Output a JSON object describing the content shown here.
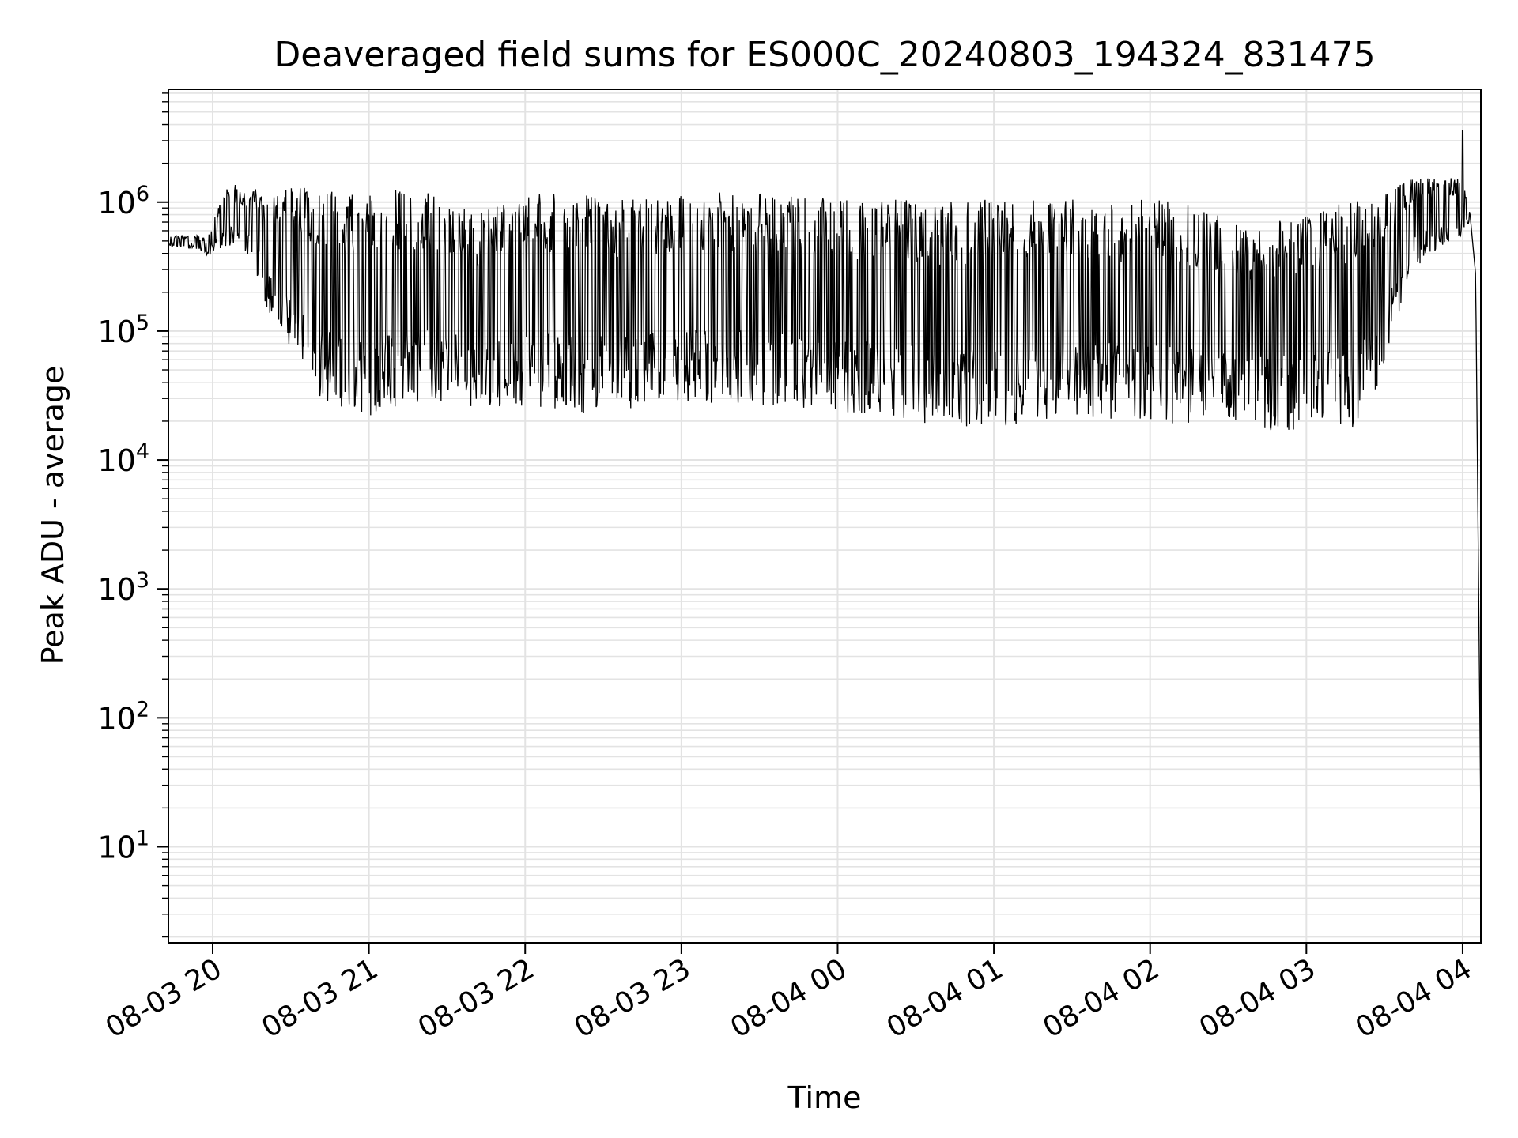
{
  "chart_data": {
    "type": "line",
    "title": "Deaveraged field sums for ES000C_20240803_194324_831475",
    "xlabel": "Time",
    "ylabel": "Peak ADU - average",
    "yscale": "log",
    "grid": true,
    "legend": "none",
    "xlim": [
      "2024-08-03T19:43",
      "2024-08-04T04:07"
    ],
    "ylim": [
      1.8,
      7500000
    ],
    "x_ticks": [
      {
        "t": "2024-08-03T20:00",
        "label": "08-03 20"
      },
      {
        "t": "2024-08-03T21:00",
        "label": "08-03 21"
      },
      {
        "t": "2024-08-03T22:00",
        "label": "08-03 22"
      },
      {
        "t": "2024-08-03T23:00",
        "label": "08-03 23"
      },
      {
        "t": "2024-08-04T00:00",
        "label": "08-04 00"
      },
      {
        "t": "2024-08-04T01:00",
        "label": "08-04 01"
      },
      {
        "t": "2024-08-04T02:00",
        "label": "08-04 02"
      },
      {
        "t": "2024-08-04T03:00",
        "label": "08-04 03"
      },
      {
        "t": "2024-08-04T04:00",
        "label": "08-04 04"
      }
    ],
    "y_ticks": [
      {
        "value": 10,
        "base": "10",
        "exp": "1"
      },
      {
        "value": 100,
        "base": "10",
        "exp": "2"
      },
      {
        "value": 1000,
        "base": "10",
        "exp": "3"
      },
      {
        "value": 10000,
        "base": "10",
        "exp": "4"
      },
      {
        "value": 100000,
        "base": "10",
        "exp": "5"
      },
      {
        "value": 1000000,
        "base": "10",
        "exp": "6"
      }
    ],
    "series": [
      {
        "line_color": "#000000",
        "envelope": {
          "t": [
            "2024-08-03T19:43",
            "2024-08-03T19:53",
            "2024-08-03T19:58",
            "2024-08-03T20:05",
            "2024-08-03T20:15",
            "2024-08-03T20:22",
            "2024-08-03T20:30",
            "2024-08-03T20:40",
            "2024-08-03T20:50",
            "2024-08-03T21:00",
            "2024-08-03T21:10",
            "2024-08-03T21:20",
            "2024-08-03T21:30",
            "2024-08-03T21:40",
            "2024-08-03T22:00",
            "2024-08-03T22:20",
            "2024-08-03T22:40",
            "2024-08-03T23:00",
            "2024-08-03T23:20",
            "2024-08-03T23:40",
            "2024-08-04T00:00",
            "2024-08-04T00:20",
            "2024-08-04T00:40",
            "2024-08-04T01:00",
            "2024-08-04T01:20",
            "2024-08-04T01:40",
            "2024-08-04T02:00",
            "2024-08-04T02:20",
            "2024-08-04T02:40",
            "2024-08-04T03:00",
            "2024-08-04T03:20",
            "2024-08-04T03:30",
            "2024-08-04T03:40",
            "2024-08-04T03:50",
            "2024-08-04T04:00",
            "2024-08-04T04:03",
            "2024-08-04T04:05",
            "2024-08-04T04:07"
          ],
          "upper": [
            550000,
            560000,
            520000,
            1400000,
            1300000,
            1200000,
            1300000,
            1350000,
            1150000,
            1250000,
            1300000,
            1200000,
            1100000,
            800000,
            1200000,
            1150000,
            1050000,
            1150000,
            1200000,
            1150000,
            1050000,
            1100000,
            1000000,
            1050000,
            1100000,
            1000000,
            1050000,
            950000,
            700000,
            850000,
            1100000,
            1200000,
            1500000,
            1600000,
            1500000,
            800000,
            300000,
            60
          ],
          "lower": [
            450000,
            430000,
            380000,
            450000,
            350000,
            130000,
            60000,
            30000,
            25000,
            22000,
            25000,
            28000,
            27000,
            26000,
            26000,
            23000,
            25000,
            28000,
            28000,
            25000,
            22000,
            21000,
            18000,
            18000,
            20000,
            21000,
            20000,
            18000,
            17000,
            17000,
            18000,
            50000,
            300000,
            400000,
            550000,
            700000,
            250000,
            4
          ]
        },
        "peak": {
          "t": "2024-08-04T04:00",
          "value": 3600000
        }
      }
    ]
  }
}
